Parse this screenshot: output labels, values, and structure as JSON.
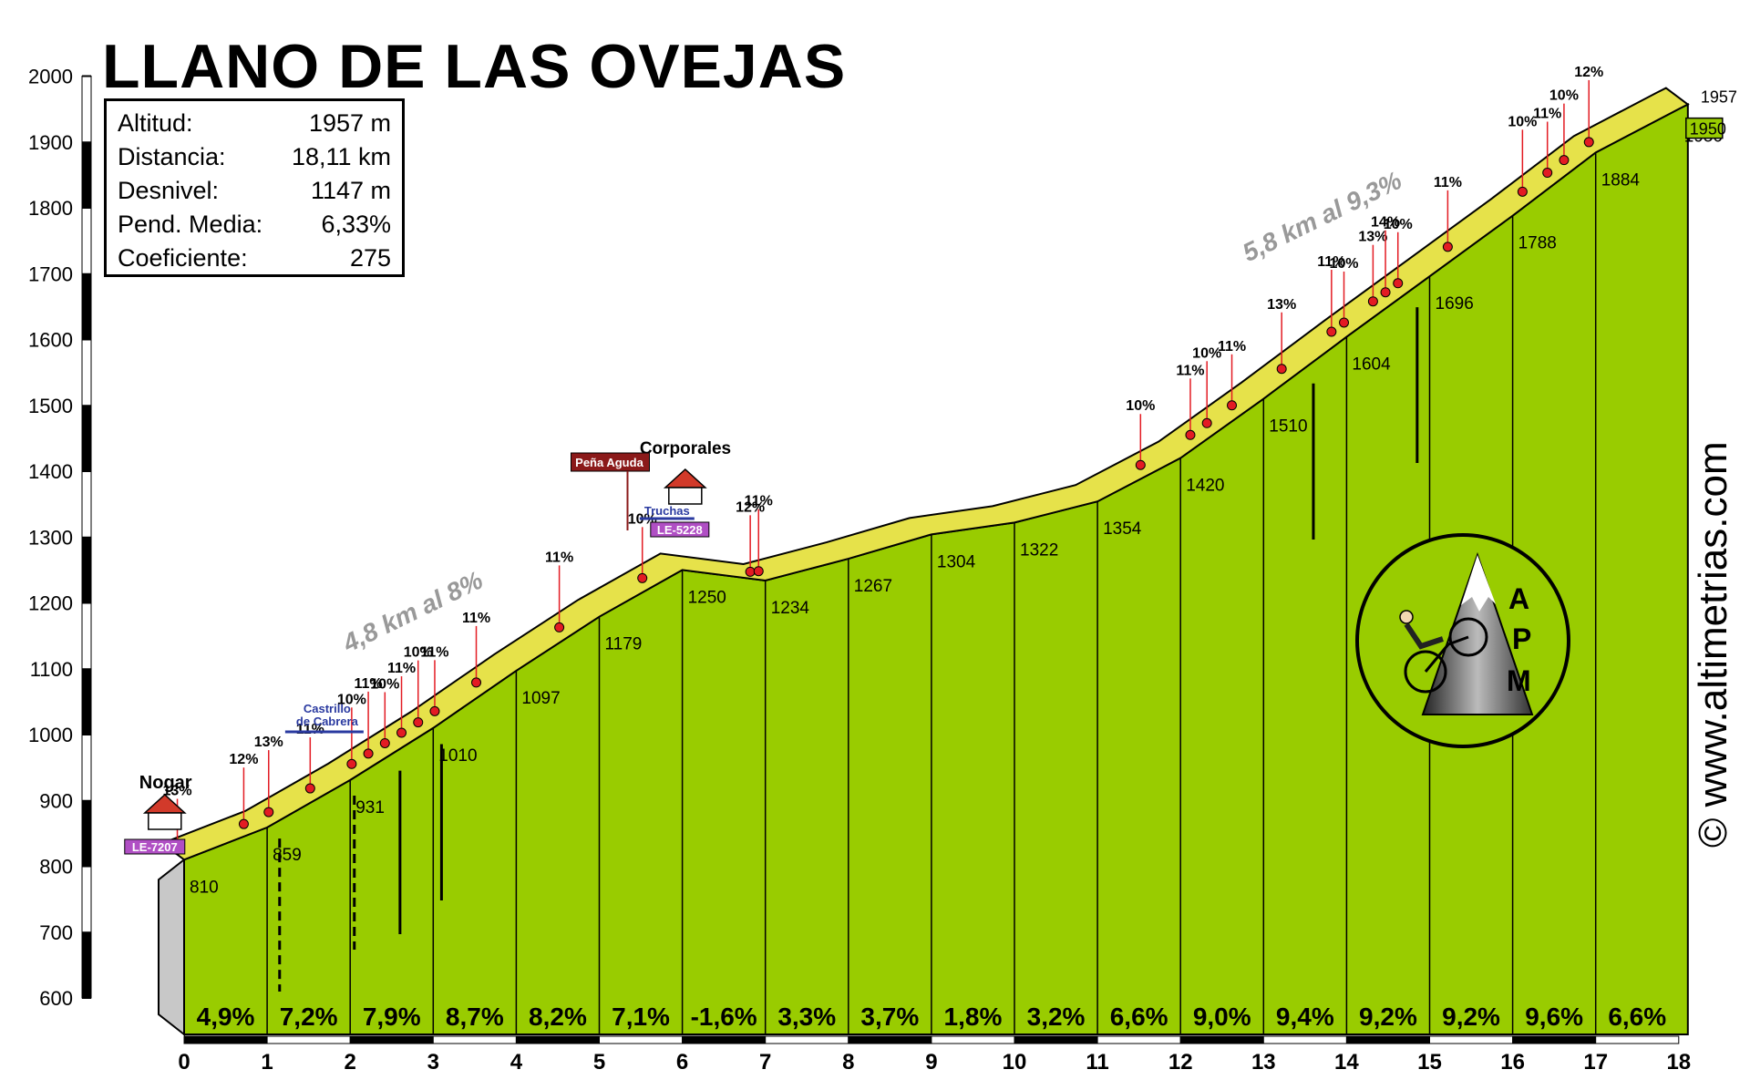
{
  "title": "LLANO DE LAS OVEJAS",
  "stats": [
    {
      "label": "Altitud:",
      "value": "1957 m"
    },
    {
      "label": "Distancia:",
      "value": "18,11 km"
    },
    {
      "label": "Desnivel:",
      "value": "1147 m"
    },
    {
      "label": "Pend. Media:",
      "value": "6,33%"
    },
    {
      "label": "Coeficiente:",
      "value": "275"
    }
  ],
  "copyright": "© www.altimetrias.com",
  "logo_letters": [
    "A",
    "P",
    "M"
  ],
  "colors": {
    "fill": "#99cc00",
    "band": "#e6e24a",
    "edge": "#7a5a1e",
    "marker": "#e31b23",
    "label_purple": "#b04fc4",
    "label_dark_red": "#8b1a1a",
    "blue_arrow": "#2a3aa0",
    "side_wall": "#c8c8c8"
  },
  "chart_data": {
    "type": "area",
    "xlabel": "",
    "ylabel": "",
    "xlim": [
      0,
      18
    ],
    "ylim": [
      600,
      2000
    ],
    "x_ticks": [
      "0",
      "1",
      "2",
      "3",
      "4",
      "5",
      "6",
      "7",
      "8",
      "9",
      "10",
      "11",
      "12",
      "13",
      "14",
      "15",
      "16",
      "17",
      "18"
    ],
    "y_ticks": [
      "600",
      "700",
      "800",
      "900",
      "1000",
      "1100",
      "1200",
      "1300",
      "1400",
      "1500",
      "1600",
      "1700",
      "1800",
      "1900",
      "2000"
    ],
    "profile": [
      {
        "x": 0,
        "y": 810
      },
      {
        "x": 1,
        "y": 859
      },
      {
        "x": 2,
        "y": 931
      },
      {
        "x": 3,
        "y": 1010
      },
      {
        "x": 4,
        "y": 1097
      },
      {
        "x": 5,
        "y": 1179
      },
      {
        "x": 6,
        "y": 1250
      },
      {
        "x": 7,
        "y": 1234
      },
      {
        "x": 8,
        "y": 1267
      },
      {
        "x": 9,
        "y": 1304
      },
      {
        "x": 10,
        "y": 1322
      },
      {
        "x": 11,
        "y": 1354
      },
      {
        "x": 12,
        "y": 1420
      },
      {
        "x": 13,
        "y": 1510
      },
      {
        "x": 14,
        "y": 1604
      },
      {
        "x": 15,
        "y": 1696
      },
      {
        "x": 16,
        "y": 1788
      },
      {
        "x": 17,
        "y": 1884
      },
      {
        "x": 18,
        "y": 1950
      },
      {
        "x": 18.11,
        "y": 1957
      }
    ],
    "altitude_labels": [
      "810",
      "859",
      "931",
      "1010",
      "1097",
      "1179",
      "1250",
      "1234",
      "1267",
      "1304",
      "1322",
      "1354",
      "1420",
      "1510",
      "1604",
      "1696",
      "1788",
      "1884",
      "1950"
    ],
    "segment_gradients": [
      "4,9%",
      "7,2%",
      "7,9%",
      "8,7%",
      "8,2%",
      "7,1%",
      "-1,6%",
      "3,3%",
      "3,7%",
      "1,8%",
      "3,2%",
      "6,6%",
      "9,0%",
      "9,4%",
      "9,2%",
      "9,2%",
      "9,6%",
      "6,6%"
    ],
    "peak_label": "1957",
    "steep_points": [
      {
        "x": 0.05,
        "label": "13%"
      },
      {
        "x": 0.85,
        "label": "12%"
      },
      {
        "x": 1.15,
        "label": "13%"
      },
      {
        "x": 1.65,
        "label": "11%"
      },
      {
        "x": 2.15,
        "label": "10%"
      },
      {
        "x": 2.35,
        "label": "11%"
      },
      {
        "x": 2.55,
        "label": "10%"
      },
      {
        "x": 2.75,
        "label": "11%"
      },
      {
        "x": 2.95,
        "label": "10%"
      },
      {
        "x": 3.15,
        "label": "11%"
      },
      {
        "x": 3.65,
        "label": "11%"
      },
      {
        "x": 4.65,
        "label": "11%"
      },
      {
        "x": 5.65,
        "label": "10%"
      },
      {
        "x": 6.95,
        "label": "12%"
      },
      {
        "x": 7.05,
        "label": "11%"
      },
      {
        "x": 11.65,
        "label": "10%"
      },
      {
        "x": 12.25,
        "label": "11%"
      },
      {
        "x": 12.45,
        "label": "10%"
      },
      {
        "x": 12.75,
        "label": "11%"
      },
      {
        "x": 13.35,
        "label": "13%"
      },
      {
        "x": 13.95,
        "label": "11%"
      },
      {
        "x": 14.1,
        "label": "10%"
      },
      {
        "x": 14.45,
        "label": "13%"
      },
      {
        "x": 14.6,
        "label": "14%"
      },
      {
        "x": 14.75,
        "label": "10%"
      },
      {
        "x": 15.35,
        "label": "11%"
      },
      {
        "x": 16.25,
        "label": "10%"
      },
      {
        "x": 16.55,
        "label": "11%"
      },
      {
        "x": 16.75,
        "label": "10%"
      },
      {
        "x": 17.05,
        "label": "12%"
      }
    ],
    "annotations": [
      {
        "text": "4,8 km al 8%",
        "x": 2.8,
        "y": 1175
      },
      {
        "text": "5,8 km al 9,3%",
        "x": 13.75,
        "y": 1775
      }
    ],
    "places": [
      {
        "name": "Nogar",
        "x": -0.65,
        "road": "LE-7207"
      },
      {
        "name": "Corporales",
        "x": 6.65,
        "road": "LE-5228"
      },
      {
        "name": "Peña Aguda",
        "x": 5.45
      },
      {
        "name": "Castrillo",
        "name2": "de Cabrera",
        "x": 1.7
      },
      {
        "name": "Truchas",
        "x": 6.4
      }
    ]
  }
}
